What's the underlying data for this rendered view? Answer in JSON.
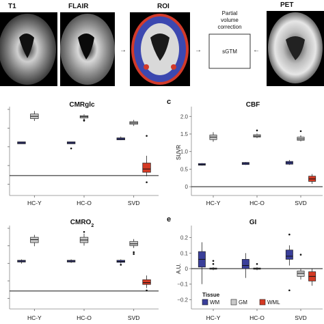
{
  "top_row": {
    "scans": [
      {
        "label": "T1"
      },
      {
        "label": "FLAIR"
      },
      {
        "label": "ROI"
      },
      {
        "label": "PET"
      }
    ],
    "pvc_caption": [
      "Partial",
      "volume",
      "correction"
    ],
    "sgtm_label": "sGTM"
  },
  "colors": {
    "WM": "#3a3f9a",
    "GM": "#c9c9c9",
    "WML": "#d43a24"
  },
  "chart_data": [
    {
      "type": "box",
      "letter": "",
      "title": "CMRglc",
      "title_sub": "",
      "xlabel": "",
      "ylabel": "",
      "categories": [
        "HC-Y",
        "HC-O",
        "SVD"
      ],
      "ylim": [
        -0.6,
        2.0
      ],
      "yticks": [],
      "hline": 0,
      "series": [
        {
          "group": "WM",
          "boxes": [
            {
              "cat": "HC-Y",
              "q1": 0.96,
              "med": 0.99,
              "q3": 1.02,
              "wlo": 0.96,
              "whi": 1.02,
              "out": []
            },
            {
              "cat": "HC-O",
              "q1": 0.96,
              "med": 0.99,
              "q3": 1.02,
              "wlo": 0.96,
              "whi": 1.02,
              "out": [
                0.82
              ]
            },
            {
              "cat": "SVD",
              "q1": 1.08,
              "med": 1.11,
              "q3": 1.14,
              "wlo": 1.07,
              "whi": 1.18,
              "out": []
            }
          ]
        },
        {
          "group": "GM",
          "boxes": [
            {
              "cat": "HC-Y",
              "q1": 1.72,
              "med": 1.79,
              "q3": 1.86,
              "wlo": 1.65,
              "whi": 1.95,
              "out": []
            },
            {
              "cat": "HC-O",
              "q1": 1.74,
              "med": 1.78,
              "q3": 1.81,
              "wlo": 1.72,
              "whi": 1.85,
              "out": [
                1.68,
                1.66
              ]
            },
            {
              "cat": "SVD",
              "q1": 1.55,
              "med": 1.59,
              "q3": 1.63,
              "wlo": 1.5,
              "whi": 1.68,
              "out": []
            }
          ]
        },
        {
          "group": "WML",
          "boxes": [
            {
              "cat": "SVD",
              "q1": 0.1,
              "med": 0.2,
              "q3": 0.38,
              "wlo": -0.02,
              "whi": 0.6,
              "out": [
                1.2,
                -0.2
              ]
            }
          ]
        }
      ]
    },
    {
      "type": "box",
      "letter": "c",
      "title": "CBF",
      "title_sub": "",
      "xlabel": "",
      "ylabel": "SUVR",
      "categories": [
        "HC-Y",
        "HC-O",
        "SVD"
      ],
      "ylim": [
        -0.25,
        2.2
      ],
      "yticks": [
        0,
        0.5,
        1.0,
        1.5,
        2.0
      ],
      "ytick_labels": [
        "0",
        "0.5",
        "1.0",
        "1.5",
        "2.0"
      ],
      "hline": 0,
      "series": [
        {
          "group": "WM",
          "boxes": [
            {
              "cat": "HC-Y",
              "q1": 0.61,
              "med": 0.63,
              "q3": 0.66,
              "wlo": 0.6,
              "whi": 0.67,
              "out": []
            },
            {
              "cat": "HC-O",
              "q1": 0.63,
              "med": 0.66,
              "q3": 0.69,
              "wlo": 0.62,
              "whi": 0.7,
              "out": []
            },
            {
              "cat": "SVD",
              "q1": 0.64,
              "med": 0.68,
              "q3": 0.72,
              "wlo": 0.62,
              "whi": 0.76,
              "out": []
            }
          ]
        },
        {
          "group": "GM",
          "boxes": [
            {
              "cat": "HC-Y",
              "q1": 1.34,
              "med": 1.41,
              "q3": 1.47,
              "wlo": 1.28,
              "whi": 1.55,
              "out": []
            },
            {
              "cat": "HC-O",
              "q1": 1.41,
              "med": 1.44,
              "q3": 1.48,
              "wlo": 1.38,
              "whi": 1.51,
              "out": [
                1.6
              ]
            },
            {
              "cat": "SVD",
              "q1": 1.32,
              "med": 1.36,
              "q3": 1.41,
              "wlo": 1.29,
              "whi": 1.46,
              "out": [
                1.58
              ]
            }
          ]
        },
        {
          "group": "WML",
          "boxes": [
            {
              "cat": "SVD",
              "q1": 0.15,
              "med": 0.22,
              "q3": 0.3,
              "wlo": 0.08,
              "whi": 0.36,
              "out": []
            }
          ]
        }
      ]
    },
    {
      "type": "box",
      "letter": "",
      "title": "CMRO",
      "title_sub": "2",
      "xlabel": "",
      "ylabel": "",
      "categories": [
        "HC-Y",
        "HC-O",
        "SVD"
      ],
      "ylim": [
        -0.6,
        2.1
      ],
      "yticks": [],
      "hline": 0,
      "series": [
        {
          "group": "WM",
          "boxes": [
            {
              "cat": "HC-Y",
              "q1": 0.97,
              "med": 1.0,
              "q3": 1.03,
              "wlo": 0.92,
              "whi": 1.06,
              "out": []
            },
            {
              "cat": "HC-O",
              "q1": 0.97,
              "med": 1.0,
              "q3": 1.03,
              "wlo": 0.94,
              "whi": 1.06,
              "out": []
            },
            {
              "cat": "SVD",
              "q1": 0.96,
              "med": 0.99,
              "q3": 1.03,
              "wlo": 0.92,
              "whi": 1.06,
              "out": [
                0.88
              ]
            }
          ]
        },
        {
          "group": "GM",
          "boxes": [
            {
              "cat": "HC-Y",
              "q1": 1.62,
              "med": 1.72,
              "q3": 1.8,
              "wlo": 1.5,
              "whi": 1.88,
              "out": []
            },
            {
              "cat": "HC-O",
              "q1": 1.62,
              "med": 1.71,
              "q3": 1.8,
              "wlo": 1.52,
              "whi": 1.92,
              "out": [
                1.98
              ]
            },
            {
              "cat": "SVD",
              "q1": 1.52,
              "med": 1.58,
              "q3": 1.66,
              "wlo": 1.44,
              "whi": 1.74,
              "out": [
                1.3,
                1.24
              ]
            }
          ]
        },
        {
          "group": "WML",
          "boxes": [
            {
              "cat": "SVD",
              "q1": 0.22,
              "med": 0.28,
              "q3": 0.38,
              "wlo": 0.1,
              "whi": 0.52,
              "out": [
                0.02
              ]
            }
          ]
        }
      ]
    },
    {
      "type": "box",
      "letter": "e",
      "title": "GI",
      "title_sub": "",
      "xlabel": "",
      "ylabel": "A.U.",
      "categories": [
        "HC-Y",
        "HC-O",
        "SVD"
      ],
      "ylim": [
        -0.26,
        0.26
      ],
      "yticks": [
        -0.2,
        -0.1,
        0,
        0.1,
        0.2
      ],
      "ytick_labels": [
        "−0.2",
        "−0.1",
        "0",
        "0.1",
        "0.2"
      ],
      "hline": 0,
      "series": [
        {
          "group": "WM",
          "boxes": [
            {
              "cat": "HC-Y",
              "q1": 0.01,
              "med": 0.06,
              "q3": 0.11,
              "wlo": -0.1,
              "whi": 0.17,
              "out": []
            },
            {
              "cat": "HC-O",
              "q1": 0.0,
              "med": 0.02,
              "q3": 0.06,
              "wlo": -0.06,
              "whi": 0.1,
              "out": []
            },
            {
              "cat": "SVD",
              "q1": 0.06,
              "med": 0.08,
              "q3": 0.12,
              "wlo": 0.02,
              "whi": 0.15,
              "out": [
                0.22,
                -0.14
              ]
            }
          ]
        },
        {
          "group": "GM",
          "boxes": [
            {
              "cat": "HC-Y",
              "q1": -0.004,
              "med": 0.0,
              "q3": 0.004,
              "wlo": -0.01,
              "whi": 0.01,
              "out": [
                0.05,
                0.03
              ]
            },
            {
              "cat": "HC-O",
              "q1": -0.004,
              "med": 0.0,
              "q3": 0.004,
              "wlo": -0.01,
              "whi": 0.01,
              "out": [
                0.03
              ]
            },
            {
              "cat": "SVD",
              "q1": -0.05,
              "med": -0.03,
              "q3": -0.015,
              "wlo": -0.07,
              "whi": 0.0,
              "out": [
                0.09
              ]
            }
          ]
        },
        {
          "group": "WML",
          "boxes": [
            {
              "cat": "SVD",
              "q1": -0.08,
              "med": -0.05,
              "q3": -0.02,
              "wlo": -0.11,
              "whi": 0.0,
              "out": []
            }
          ]
        }
      ],
      "legend": {
        "title": "Tissue",
        "items": [
          "WM",
          "GM",
          "WML"
        ],
        "position": "bottom-left"
      }
    }
  ]
}
